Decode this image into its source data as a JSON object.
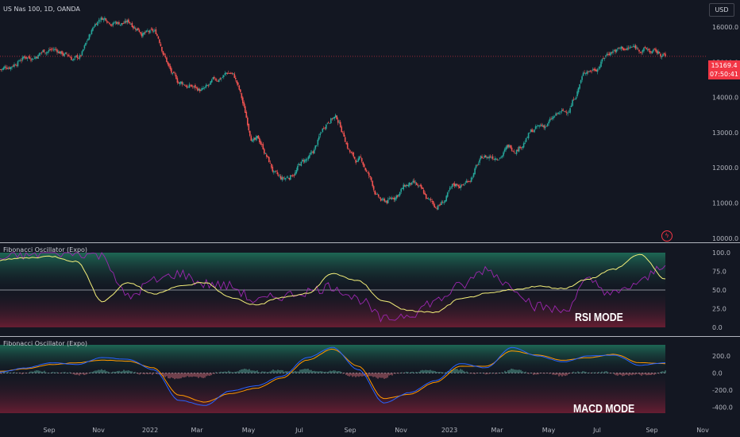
{
  "header": {
    "symbol_line": "US Nas 100, 1D, OANDA",
    "currency": "USD",
    "price_tag_value": "15169.4",
    "price_tag_countdown": "07:50:41"
  },
  "panes": {
    "rsi_title": "Fibonacci Oscillator (Expo)",
    "macd_title": "Fibonacci Oscillator (Expo)",
    "rsi_mode_label": "RSI MODE",
    "macd_mode_label": "MACD MODE"
  },
  "colors": {
    "background": "#131722",
    "candle_up": "#26a69a",
    "candle_down": "#ef5350",
    "rsi_fast": "#9c27b0",
    "rsi_slow": "#f5f07a",
    "macd_line": "#2962ff",
    "signal_line": "#ff9800",
    "zone_green": "#1b5e4a",
    "zone_red": "#5e1b2a",
    "price_tag": "#f23645"
  },
  "chart_data": [
    {
      "type": "candlestick",
      "title": "US Nas 100, 1D, OANDA",
      "x_ticks": [
        "Sep",
        "Nov",
        "2022",
        "Mar",
        "May",
        "Jul",
        "Sep",
        "Nov",
        "2023",
        "Mar",
        "May",
        "Jul",
        "Sep",
        "Nov"
      ],
      "y_ticks": [
        "16000.0",
        "15000.0",
        "14000.0",
        "13000.0",
        "12000.0",
        "11000.0",
        "10000.0"
      ],
      "ylim": [
        9950,
        16500
      ],
      "last_price": 15169.4,
      "close_path": {
        "months": [
          "2021-07",
          "2021-08",
          "2021-09",
          "2021-10",
          "2021-11",
          "2021-12",
          "2022-01",
          "2022-02",
          "2022-03",
          "2022-04",
          "2022-05",
          "2022-06",
          "2022-07",
          "2022-08",
          "2022-09",
          "2022-10",
          "2022-11",
          "2022-12",
          "2023-01",
          "2023-02",
          "2023-03",
          "2023-04",
          "2023-05",
          "2023-06",
          "2023-07",
          "2023-08",
          "2023-09"
        ],
        "values": [
          14800,
          15200,
          15400,
          15100,
          16300,
          16150,
          15800,
          14400,
          14200,
          14700,
          12800,
          11600,
          12200,
          13500,
          12200,
          11000,
          11500,
          10900,
          11500,
          12300,
          12600,
          13100,
          13500,
          14800,
          15400,
          15400,
          15169.4
        ]
      }
    },
    {
      "type": "line",
      "title": "Fibonacci Oscillator (Expo)",
      "label": "RSI MODE",
      "y_ticks": [
        "100.0",
        "75.0",
        "50.0",
        "25.0",
        "0.0"
      ],
      "ylim": [
        0,
        100
      ],
      "midline": 50,
      "months": [
        "2021-07",
        "2021-08",
        "2021-09",
        "2021-10",
        "2021-11",
        "2021-12",
        "2022-01",
        "2022-02",
        "2022-03",
        "2022-04",
        "2022-05",
        "2022-06",
        "2022-07",
        "2022-08",
        "2022-09",
        "2022-10",
        "2022-11",
        "2022-12",
        "2023-01",
        "2023-02",
        "2023-03",
        "2023-04",
        "2023-05",
        "2023-06",
        "2023-07",
        "2023-08",
        "2023-09"
      ],
      "series": [
        {
          "values": [
            92,
            97,
            100,
            100,
            96,
            40,
            62,
            72,
            58,
            55,
            35,
            42,
            48,
            55,
            38,
            10,
            18,
            35,
            55,
            78,
            55,
            28,
            22,
            62,
            44,
            60,
            85
          ]
        },
        {
          "values": [
            90,
            93,
            95,
            88,
            35,
            60,
            45,
            55,
            60,
            40,
            30,
            40,
            45,
            72,
            62,
            35,
            22,
            20,
            38,
            45,
            50,
            55,
            52,
            65,
            78,
            98,
            65
          ]
        }
      ]
    },
    {
      "type": "line",
      "title": "Fibonacci Oscillator (Expo)",
      "label": "MACD MODE",
      "y_ticks": [
        "200.0",
        "0.0",
        "-200.0",
        "-400.0"
      ],
      "ylim": [
        -470,
        330
      ],
      "months": [
        "2021-07",
        "2021-08",
        "2021-09",
        "2021-10",
        "2021-11",
        "2021-12",
        "2022-01",
        "2022-02",
        "2022-03",
        "2022-04",
        "2022-05",
        "2022-06",
        "2022-07",
        "2022-08",
        "2022-09",
        "2022-10",
        "2022-11",
        "2022-12",
        "2023-01",
        "2023-02",
        "2023-03",
        "2023-04",
        "2023-05",
        "2023-06",
        "2023-07",
        "2023-08",
        "2023-09"
      ],
      "series": [
        {
          "values": [
            10,
            60,
            120,
            100,
            180,
            160,
            40,
            -320,
            -380,
            -210,
            -150,
            -40,
            180,
            300,
            40,
            -350,
            -230,
            -90,
            110,
            60,
            300,
            200,
            130,
            200,
            210,
            90,
            120
          ]
        },
        {
          "values": [
            20,
            50,
            100,
            120,
            150,
            140,
            60,
            -260,
            -340,
            -240,
            -180,
            -60,
            150,
            280,
            80,
            -300,
            -250,
            -110,
            80,
            80,
            260,
            210,
            150,
            180,
            220,
            120,
            110
          ]
        },
        {
          "values": [
            -10,
            10,
            20,
            -20,
            30,
            20,
            -20,
            -60,
            -40,
            30,
            30,
            20,
            30,
            20,
            -40,
            -50,
            20,
            20,
            30,
            -20,
            40,
            -10,
            -20,
            20,
            -10,
            -30,
            10
          ]
        }
      ]
    }
  ]
}
